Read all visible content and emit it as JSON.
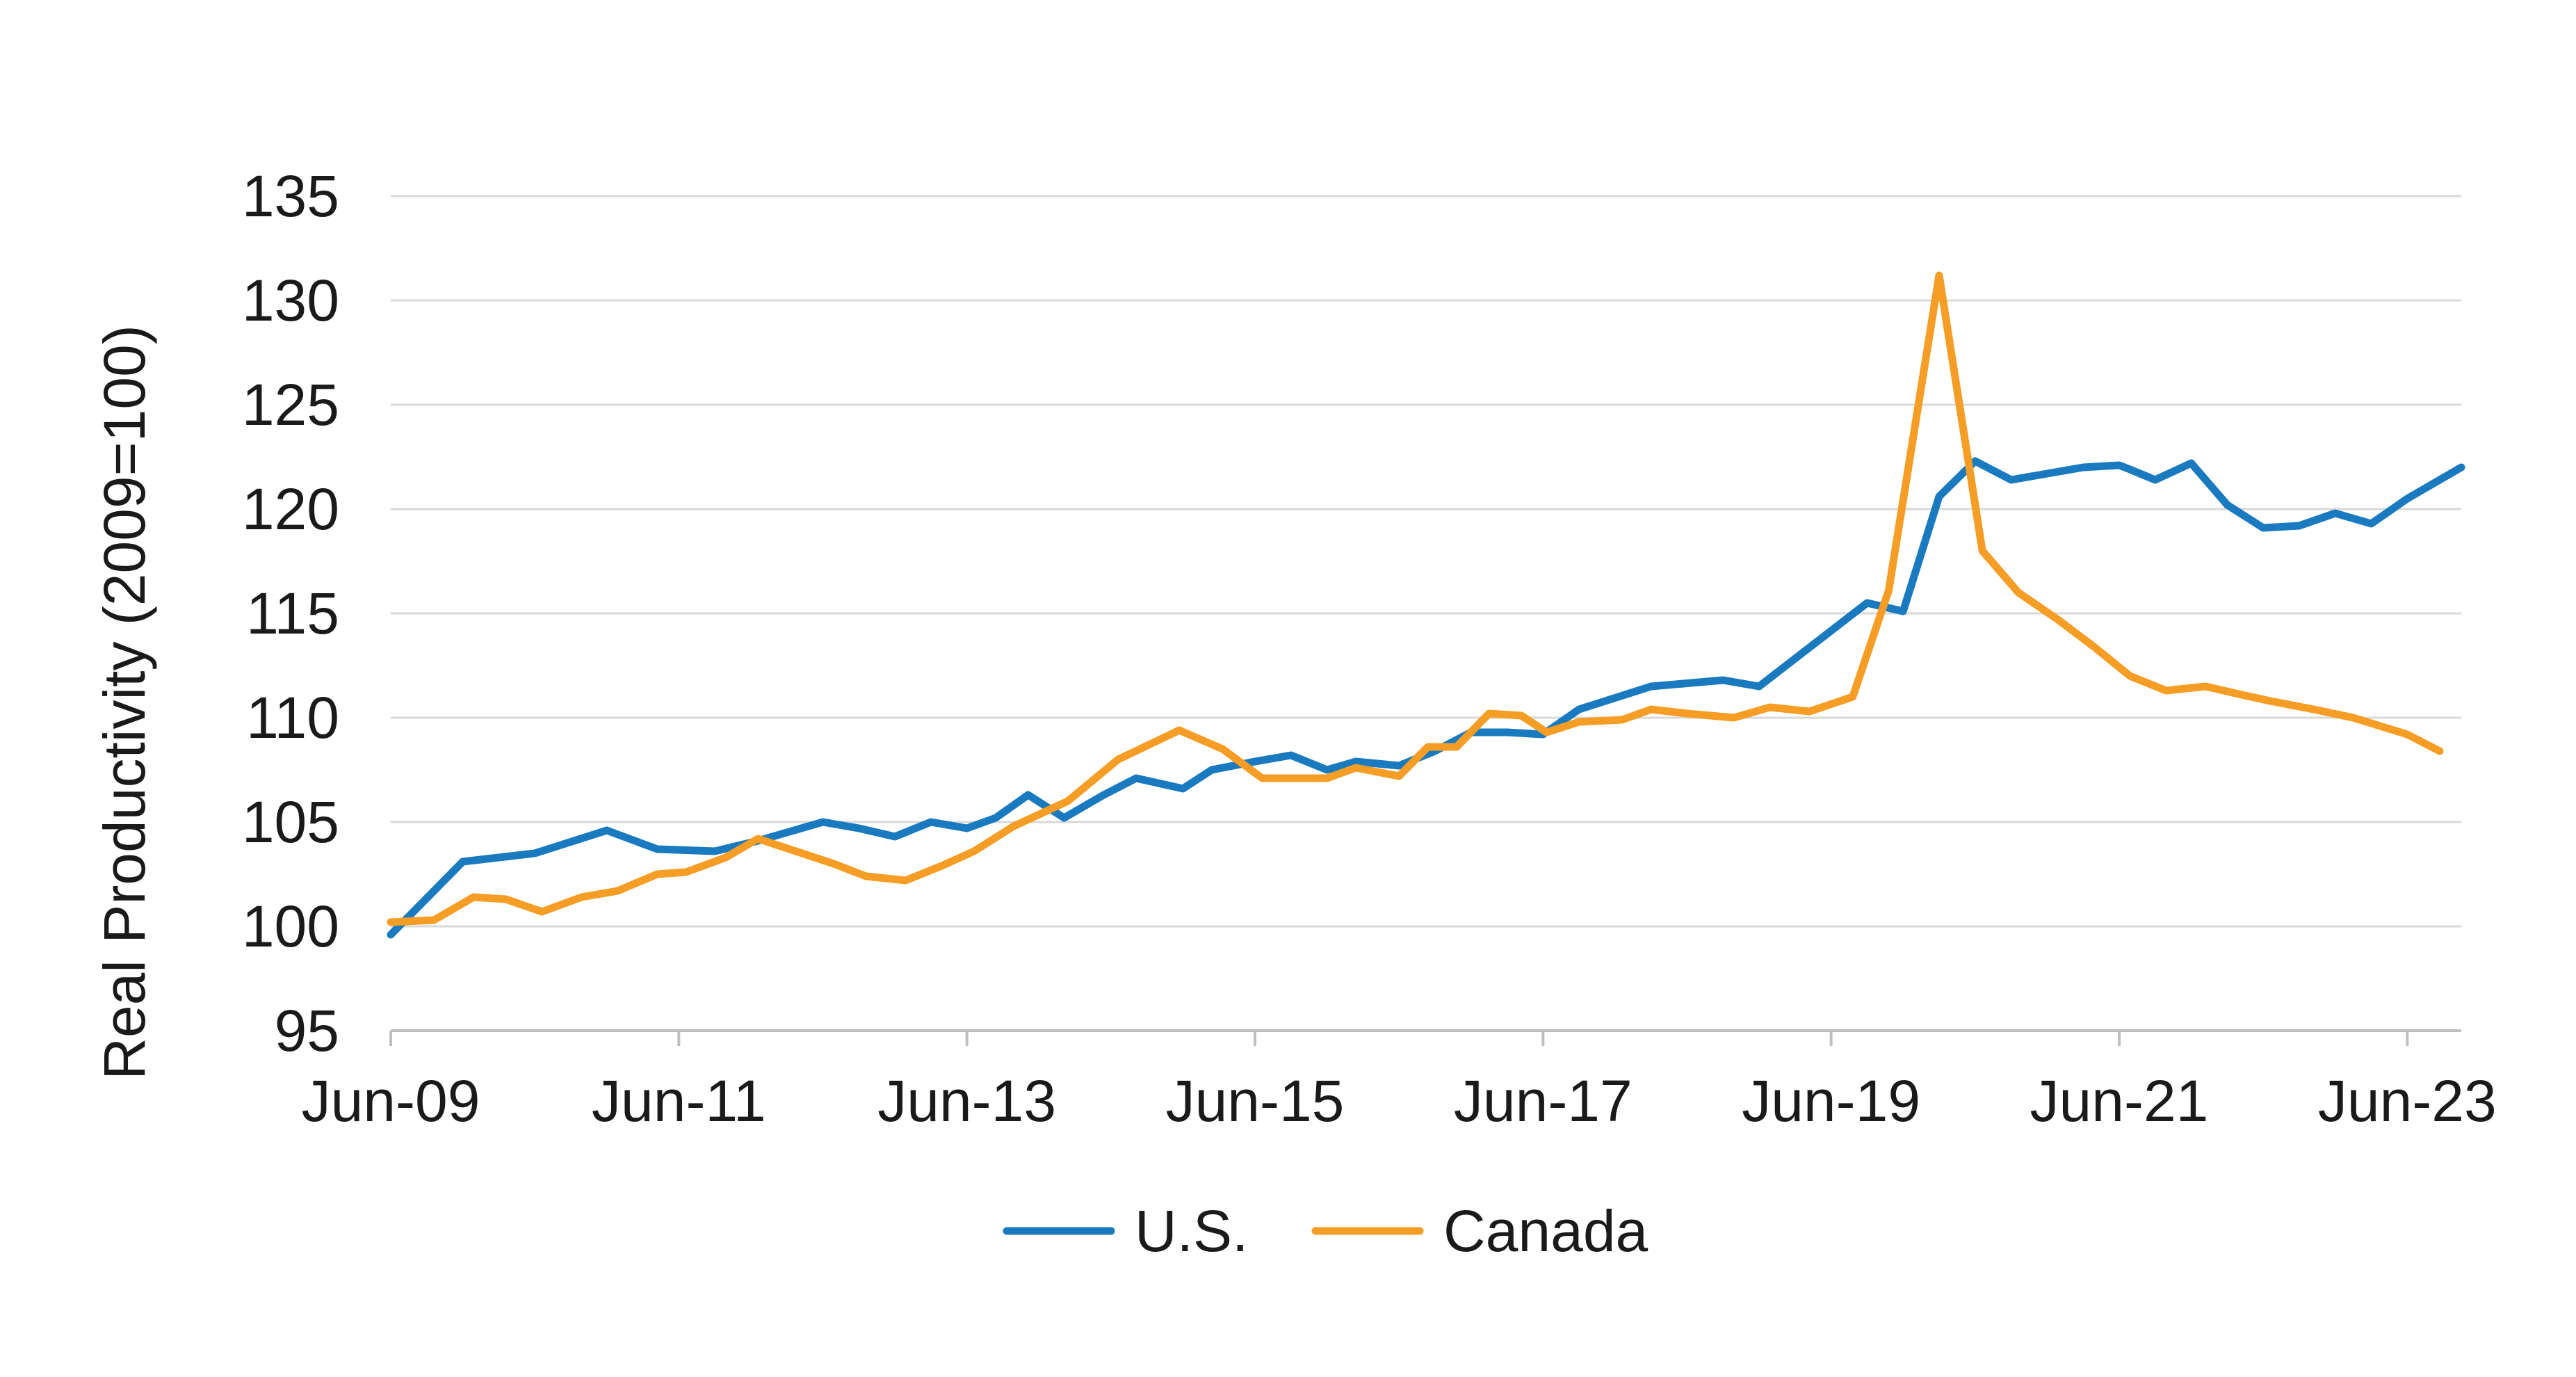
{
  "chart_data": {
    "type": "line",
    "title": "",
    "xlabel": "",
    "ylabel": "Real Productivity (2009=100)",
    "ylim": [
      95,
      135
    ],
    "yticks": [
      95,
      100,
      105,
      110,
      115,
      120,
      125,
      130,
      135
    ],
    "ytick_labels": [
      "95",
      "100",
      "105",
      "110",
      "115",
      "120",
      "125",
      "130",
      "135"
    ],
    "xlim": [
      0,
      57.5
    ],
    "xticks": [
      0,
      8,
      16,
      24,
      32,
      40,
      48,
      56
    ],
    "xtick_labels": [
      "Jun-09",
      "Jun-11",
      "Jun-13",
      "Jun-15",
      "Jun-17",
      "Jun-19",
      "Jun-21",
      "Jun-23"
    ],
    "grid": true,
    "legend_position": "bottom-center",
    "series": [
      {
        "name": "U.S.",
        "color": "#1a7ac0",
        "x": [
          0,
          2,
          4,
          6,
          7.4,
          9,
          10.2,
          12,
          13,
          14,
          15,
          16,
          16.8,
          17.7,
          18.7,
          19.8,
          20.7,
          22,
          22.8,
          24,
          25,
          26,
          26.8,
          28,
          29,
          30,
          31,
          32,
          33,
          35,
          37,
          38,
          41,
          42,
          43,
          44,
          45,
          46,
          47,
          48,
          48.3,
          49,
          50,
          51,
          52,
          53,
          54,
          55,
          56,
          57.5
        ],
        "y": [
          99.6,
          103.1,
          103.5,
          104.6,
          103.7,
          103.6,
          104.1,
          105.0,
          104.7,
          104.3,
          105.0,
          104.7,
          105.2,
          106.3,
          105.2,
          106.3,
          107.1,
          106.6,
          107.5,
          107.9,
          108.2,
          107.5,
          107.9,
          107.7,
          108.4,
          109.3,
          109.3,
          109.2,
          110.4,
          111.5,
          111.8,
          111.5,
          115.5,
          115.1,
          120.6,
          122.3,
          121.4,
          121.7,
          122.0,
          122.1,
          121.9,
          121.4,
          122.2,
          120.2,
          119.1,
          119.2,
          119.8,
          119.3,
          120.5,
          122.0
        ]
      },
      {
        "name": "Canada",
        "color": "#f59d25",
        "x": [
          0,
          1.2,
          2.3,
          3.2,
          4.2,
          5.3,
          6.3,
          7.4,
          8.2,
          9.3,
          10.2,
          12.3,
          13.2,
          14.3,
          15.3,
          16.2,
          17.3,
          18.8,
          20.2,
          21.9,
          23.1,
          24.2,
          26,
          26.8,
          28,
          28.8,
          29.6,
          30.5,
          31.4,
          32.1,
          33,
          34.2,
          35,
          36,
          37.3,
          38.3,
          39.4,
          40.6,
          41.6,
          43,
          44.2,
          45.2,
          46.3,
          47.3,
          48.3,
          49.3,
          50.4,
          51.4,
          52.2,
          53.4,
          54.5,
          56,
          56.9
        ],
        "y": [
          100.2,
          100.3,
          101.4,
          101.3,
          100.7,
          101.4,
          101.7,
          102.5,
          102.6,
          103.3,
          104.2,
          103.0,
          102.4,
          102.2,
          102.9,
          103.6,
          104.8,
          106.0,
          108.0,
          109.4,
          108.5,
          107.1,
          107.1,
          107.6,
          107.2,
          108.6,
          108.6,
          110.2,
          110.1,
          109.3,
          109.8,
          109.9,
          110.4,
          110.2,
          110.0,
          110.5,
          110.3,
          111.0,
          116.1,
          131.2,
          118.0,
          116.0,
          114.7,
          113.4,
          112.0,
          111.3,
          111.5,
          111.1,
          110.8,
          110.4,
          110.0,
          109.2,
          108.4
        ]
      }
    ]
  }
}
